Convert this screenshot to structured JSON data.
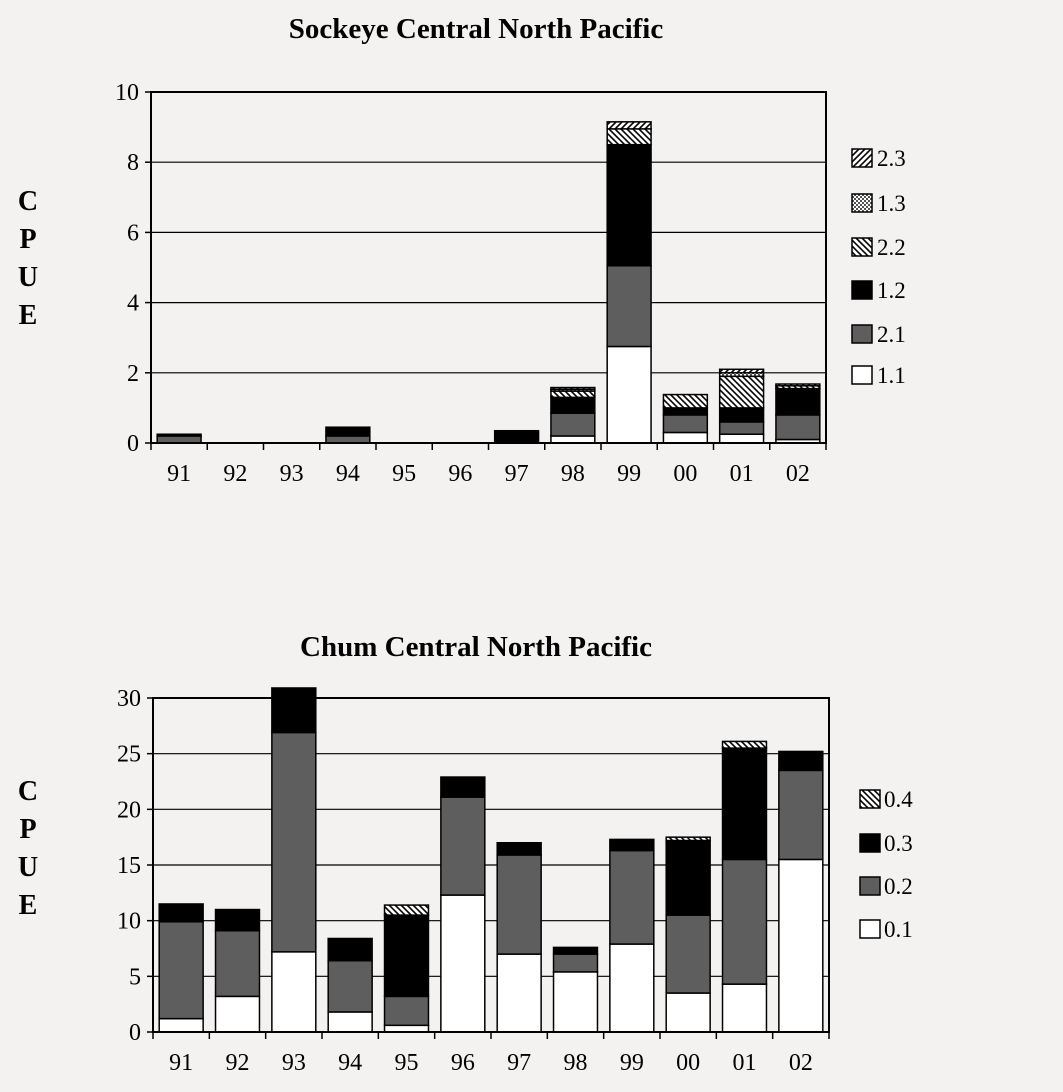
{
  "chart_data": [
    {
      "type": "bar",
      "stacked": true,
      "title": "Sockeye Central North Pacific",
      "ylabel": "CPUE",
      "ylabel_letters": [
        "C",
        "P",
        "U",
        "E"
      ],
      "ylim": [
        0,
        10
      ],
      "yticks": [
        0,
        2,
        4,
        6,
        8,
        10
      ],
      "grid": true,
      "legend_position": "right",
      "categories": [
        "91",
        "92",
        "93",
        "94",
        "95",
        "96",
        "97",
        "98",
        "99",
        "00",
        "01",
        "02"
      ],
      "series": [
        {
          "name": "1.1",
          "color": "#ffffff",
          "values": [
            0,
            0,
            0,
            0,
            0,
            0,
            0,
            0.2,
            2.75,
            0.3,
            0.25,
            0.1
          ]
        },
        {
          "name": "2.1",
          "color": "#5e5e5e",
          "values": [
            0.2,
            0,
            0,
            0.2,
            0,
            0,
            0,
            0.65,
            2.3,
            0.5,
            0.35,
            0.7
          ]
        },
        {
          "name": "1.2",
          "color": "#000000",
          "values": [
            0.05,
            0,
            0,
            0.25,
            0,
            0,
            0.35,
            0.45,
            3.45,
            0.2,
            0.4,
            0.75
          ]
        },
        {
          "name": "2.2",
          "color": "#9a9a9a",
          "values": [
            0,
            0,
            0,
            0,
            0,
            0,
            0,
            0.18,
            0.45,
            0.38,
            0.9,
            0.08
          ]
        },
        {
          "name": "1.3",
          "color": "#c8c8c8",
          "values": [
            0,
            0,
            0,
            0,
            0,
            0,
            0,
            0.05,
            0,
            0,
            0.1,
            0
          ]
        },
        {
          "name": "2.3",
          "color": "#6e6e6e",
          "values": [
            0,
            0,
            0,
            0,
            0,
            0,
            0,
            0.05,
            0.2,
            0,
            0.1,
            0.05
          ]
        }
      ]
    },
    {
      "type": "bar",
      "stacked": true,
      "title": "Chum Central North Pacific",
      "ylabel": "CPUE",
      "ylabel_letters": [
        "C",
        "P",
        "U",
        "E"
      ],
      "ylim": [
        0,
        30
      ],
      "yticks": [
        0,
        5,
        10,
        15,
        20,
        25,
        30
      ],
      "grid": true,
      "legend_position": "right",
      "categories": [
        "91",
        "92",
        "93",
        "94",
        "95",
        "96",
        "97",
        "98",
        "99",
        "00",
        "01",
        "02"
      ],
      "series": [
        {
          "name": "0.1",
          "color": "#ffffff",
          "values": [
            1.2,
            3.2,
            7.2,
            1.8,
            0.6,
            12.3,
            7.0,
            5.4,
            7.9,
            3.5,
            4.3,
            15.5
          ]
        },
        {
          "name": "0.2",
          "color": "#5e5e5e",
          "values": [
            8.7,
            5.9,
            19.7,
            4.6,
            2.6,
            8.8,
            8.9,
            1.6,
            8.4,
            7.0,
            11.2,
            8.0
          ]
        },
        {
          "name": "0.3",
          "color": "#000000",
          "values": [
            1.6,
            1.9,
            4.0,
            2.0,
            7.3,
            1.8,
            1.1,
            0.6,
            1.0,
            6.7,
            10.0,
            1.7
          ]
        },
        {
          "name": "0.4",
          "color": "#8a8a8a",
          "values": [
            0,
            0,
            0,
            0,
            0.9,
            0,
            0,
            0,
            0,
            0.3,
            0.6,
            0
          ]
        }
      ]
    }
  ]
}
